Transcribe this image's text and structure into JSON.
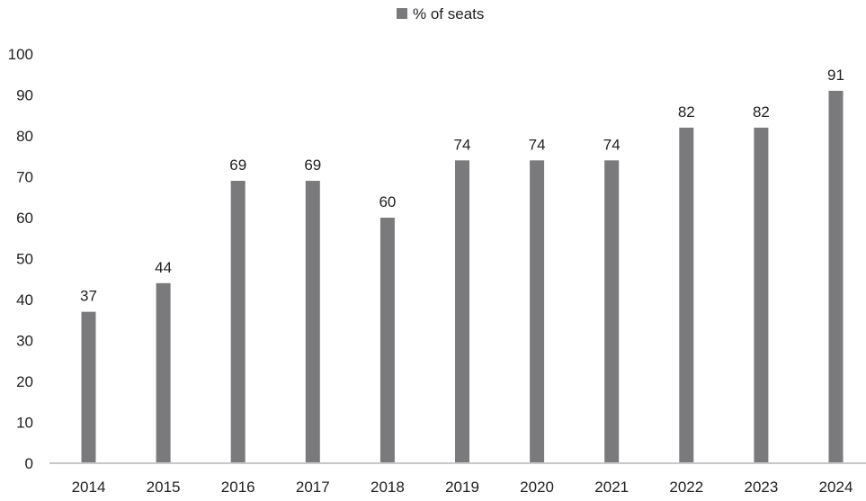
{
  "chart_data": {
    "type": "bar",
    "categories": [
      "2014",
      "2015",
      "2016",
      "2017",
      "2018",
      "2019",
      "2020",
      "2021",
      "2022",
      "2023",
      "2024"
    ],
    "series": [
      {
        "name": "% of seats",
        "values": [
          37,
          44,
          69,
          69,
          60,
          74,
          74,
          74,
          82,
          82,
          91
        ]
      }
    ],
    "title": "",
    "xlabel": "",
    "ylabel": "",
    "ylim": [
      0,
      100
    ],
    "yticks": [
      "0",
      "10",
      "20",
      "30",
      "40",
      "50",
      "60",
      "70",
      "80",
      "90",
      "100"
    ],
    "grid": false,
    "legend_position": "top-center",
    "data_labels": true,
    "colors": {
      "bar": "#7a7a7c",
      "axis": "#c8c8c8",
      "text": "#222222"
    }
  }
}
